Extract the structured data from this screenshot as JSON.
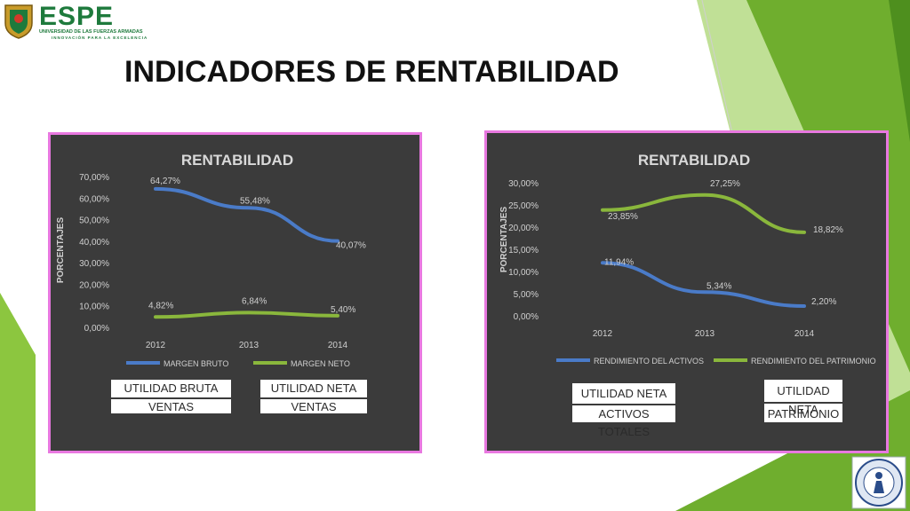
{
  "header": {
    "logo_text": "ESPE",
    "logo_subtitle": "UNIVERSIDAD DE LAS FUERZAS ARMADAS",
    "logo_tagline": "INNOVACIÓN PARA LA EXCELENCIA",
    "title": "INDICADORES DE RENTABILIDAD"
  },
  "colors": {
    "series_blue": "#4a7bc8",
    "series_green": "#8ab73c",
    "panel_bg": "#3b3b3b",
    "panel_border": "#e878e0",
    "accent_green": "#8cc63f"
  },
  "chart_data": [
    {
      "type": "line",
      "title": "RENTABILIDAD",
      "xlabel": "",
      "ylabel": "PORCENTAJES",
      "categories": [
        "2012",
        "2013",
        "2014"
      ],
      "yticks": [
        "70,00%",
        "60,00%",
        "50,00%",
        "40,00%",
        "30,00%",
        "20,00%",
        "10,00%",
        "0,00%"
      ],
      "ylim": [
        0,
        70
      ],
      "legend_position": "bottom",
      "series": [
        {
          "name": "MARGEN BRUTO",
          "color": "#4a7bc8",
          "values": [
            64.27,
            55.48,
            40.07
          ],
          "labels": [
            "64,27%",
            "55,48%",
            "40,07%"
          ]
        },
        {
          "name": "MARGEN NETO",
          "color": "#8ab73c",
          "values": [
            4.82,
            6.84,
            5.4
          ],
          "labels": [
            "4,82%",
            "6,84%",
            "5,40%"
          ]
        }
      ],
      "formulas": [
        {
          "numerator": "UTILIDAD BRUTA",
          "denominator": "VENTAS"
        },
        {
          "numerator": "UTILIDAD NETA",
          "denominator": "VENTAS"
        }
      ]
    },
    {
      "type": "line",
      "title": "RENTABILIDAD",
      "xlabel": "",
      "ylabel": "PORCENTAJES",
      "categories": [
        "2012",
        "2013",
        "2014"
      ],
      "yticks": [
        "30,00%",
        "25,00%",
        "20,00%",
        "15,00%",
        "10,00%",
        "5,00%",
        "0,00%"
      ],
      "ylim": [
        0,
        30
      ],
      "legend_position": "bottom",
      "series": [
        {
          "name": "RENDIMIENTO DEL ACTIVOS",
          "color": "#4a7bc8",
          "values": [
            11.94,
            5.34,
            2.2
          ],
          "labels": [
            "11,94%",
            "5,34%",
            "2,20%"
          ]
        },
        {
          "name": "RENDIMIENTO DEL PATRIMONIO",
          "color": "#8ab73c",
          "values": [
            23.85,
            27.25,
            18.82
          ],
          "labels": [
            "23,85%",
            "27,25%",
            "18,82%"
          ]
        }
      ],
      "formulas": [
        {
          "numerator": "UTILIDAD NETA",
          "denominator": "ACTIVOS TOTALES"
        },
        {
          "numerator": "UTILIDAD NETA",
          "denominator": "PATRIMONIO"
        }
      ]
    }
  ]
}
